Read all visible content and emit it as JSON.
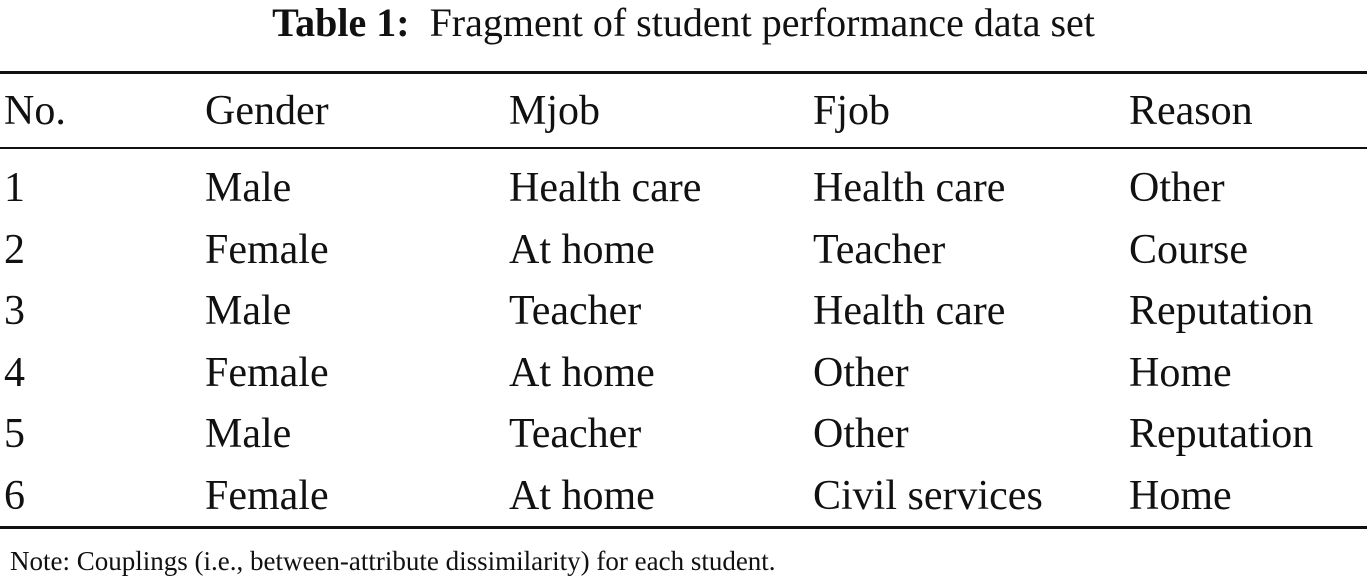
{
  "caption": {
    "label": "Table 1:",
    "text": "Fragment of student performance data set"
  },
  "table": {
    "headers": [
      "No.",
      "Gender",
      "Mjob",
      "Fjob",
      "Reason"
    ],
    "rows": [
      [
        "1",
        "Male",
        "Health care",
        "Health care",
        "Other"
      ],
      [
        "2",
        "Female",
        "At home",
        "Teacher",
        "Course"
      ],
      [
        "3",
        "Male",
        "Teacher",
        "Health care",
        "Reputation"
      ],
      [
        "4",
        "Female",
        "At home",
        "Other",
        "Home"
      ],
      [
        "5",
        "Male",
        "Teacher",
        "Other",
        "Reputation"
      ],
      [
        "6",
        "Female",
        "At home",
        "Civil services",
        "Home"
      ]
    ]
  },
  "note": "Note: Couplings (i.e., between-attribute dissimilarity) for each student."
}
